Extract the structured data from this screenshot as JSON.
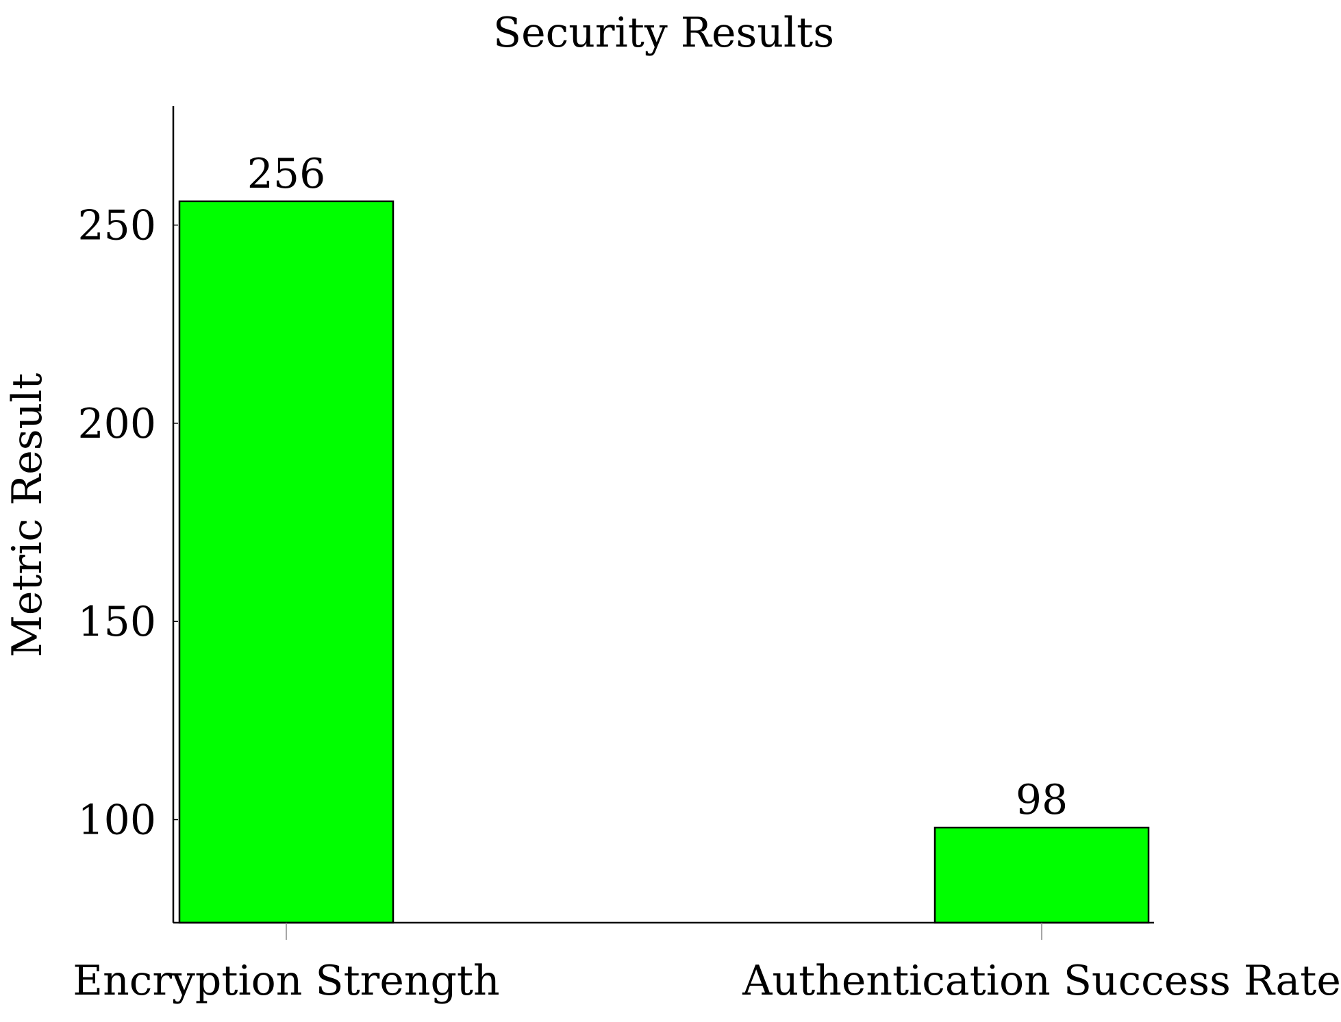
{
  "chart_data": {
    "type": "bar",
    "title": "Security Results",
    "xlabel": "",
    "ylabel": "Metric Result",
    "categories": [
      "Encryption Strength",
      "Authentication Success Rate"
    ],
    "values": [
      256,
      98
    ],
    "data_labels": [
      "256",
      "98"
    ],
    "yticks": [
      100,
      150,
      200,
      250
    ],
    "ytick_labels": [
      "100",
      "150",
      "200",
      "250"
    ],
    "ylim": [
      74,
      280
    ],
    "bar_color": "#00ff00",
    "bar_edge_color": "#000000",
    "grid": false,
    "legend": "none"
  }
}
